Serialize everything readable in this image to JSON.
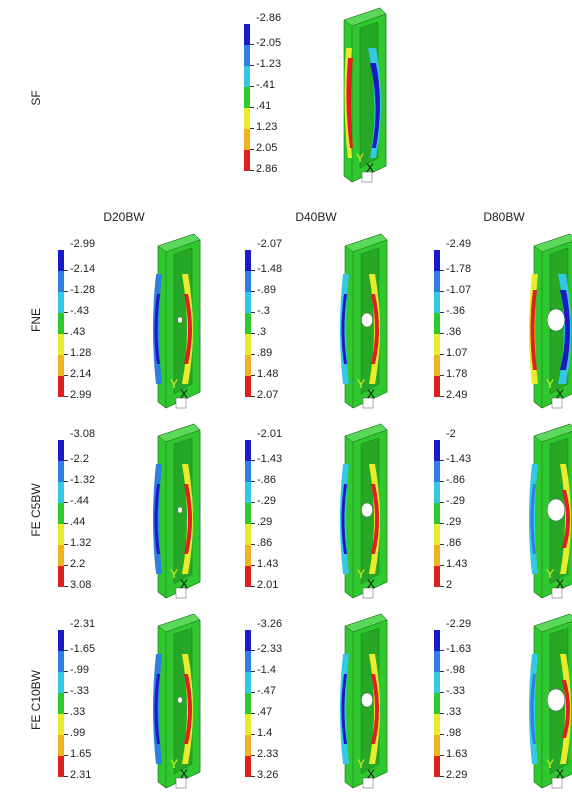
{
  "palette": [
    "#1a1ac8",
    "#2f7fe0",
    "#35c8e6",
    "#2fc82f",
    "#2fc82f",
    "#e8ec2a",
    "#eeb523",
    "#e02020"
  ],
  "row_labels": [
    "SF",
    "FNE",
    "FE C5BW",
    "FE C10BW"
  ],
  "column_labels": [
    "D20BW",
    "D40BW",
    "D80BW"
  ],
  "axis_labels": {
    "y": "Y",
    "x": "X"
  },
  "panels": [
    {
      "id": "sf",
      "legend": [
        "-2.86",
        "-2.05",
        "-1.23",
        "-.41",
        ".41",
        "1.23",
        "2.05",
        "2.86"
      ],
      "hole": false,
      "pattern": "sf"
    },
    {
      "id": "fne-d20",
      "legend": [
        "-2.99",
        "-2.14",
        "-1.28",
        "-.43",
        ".43",
        "1.28",
        "2.14",
        "2.99"
      ],
      "hole": true,
      "holeSize": "small",
      "pattern": "a"
    },
    {
      "id": "fne-d40",
      "legend": [
        "-2.07",
        "-1.48",
        "-.89",
        "-.3",
        ".3",
        ".89",
        "1.48",
        "2.07"
      ],
      "hole": true,
      "holeSize": "medium",
      "pattern": "b"
    },
    {
      "id": "fne-d80",
      "legend": [
        "-2.49",
        "-1.78",
        "-1.07",
        "-.36",
        ".36",
        "1.07",
        "1.78",
        "2.49"
      ],
      "hole": true,
      "holeSize": "large",
      "pattern": "c"
    },
    {
      "id": "c5-d20",
      "legend": [
        "-3.08",
        "-2.2",
        "-1.32",
        "-.44",
        ".44",
        "1.32",
        "2.2",
        "3.08"
      ],
      "hole": true,
      "holeSize": "small",
      "pattern": "a"
    },
    {
      "id": "c5-d40",
      "legend": [
        "-2.01",
        "-1.43",
        "-.86",
        "-.29",
        ".29",
        ".86",
        "1.43",
        "2.01"
      ],
      "hole": true,
      "holeSize": "medium",
      "pattern": "b"
    },
    {
      "id": "c5-d80",
      "legend": [
        "-2",
        "-1.43",
        "-.86",
        "-.29",
        ".29",
        ".86",
        "1.43",
        "2"
      ],
      "hole": true,
      "holeSize": "large",
      "pattern": "d"
    },
    {
      "id": "c10-d20",
      "legend": [
        "-2.31",
        "-1.65",
        "-.99",
        "-.33",
        ".33",
        ".99",
        "1.65",
        "2.31"
      ],
      "hole": true,
      "holeSize": "small",
      "pattern": "a"
    },
    {
      "id": "c10-d40",
      "legend": [
        "-3.26",
        "-2.33",
        "-1.4",
        "-.47",
        ".47",
        "1.4",
        "2.33",
        "3.26"
      ],
      "hole": true,
      "holeSize": "medium",
      "pattern": "b"
    },
    {
      "id": "c10-d80",
      "legend": [
        "-2.29",
        "-1.63",
        "-.98",
        "-.33",
        ".33",
        ".98",
        "1.63",
        "2.29"
      ],
      "hole": true,
      "holeSize": "large",
      "pattern": "d"
    }
  ]
}
